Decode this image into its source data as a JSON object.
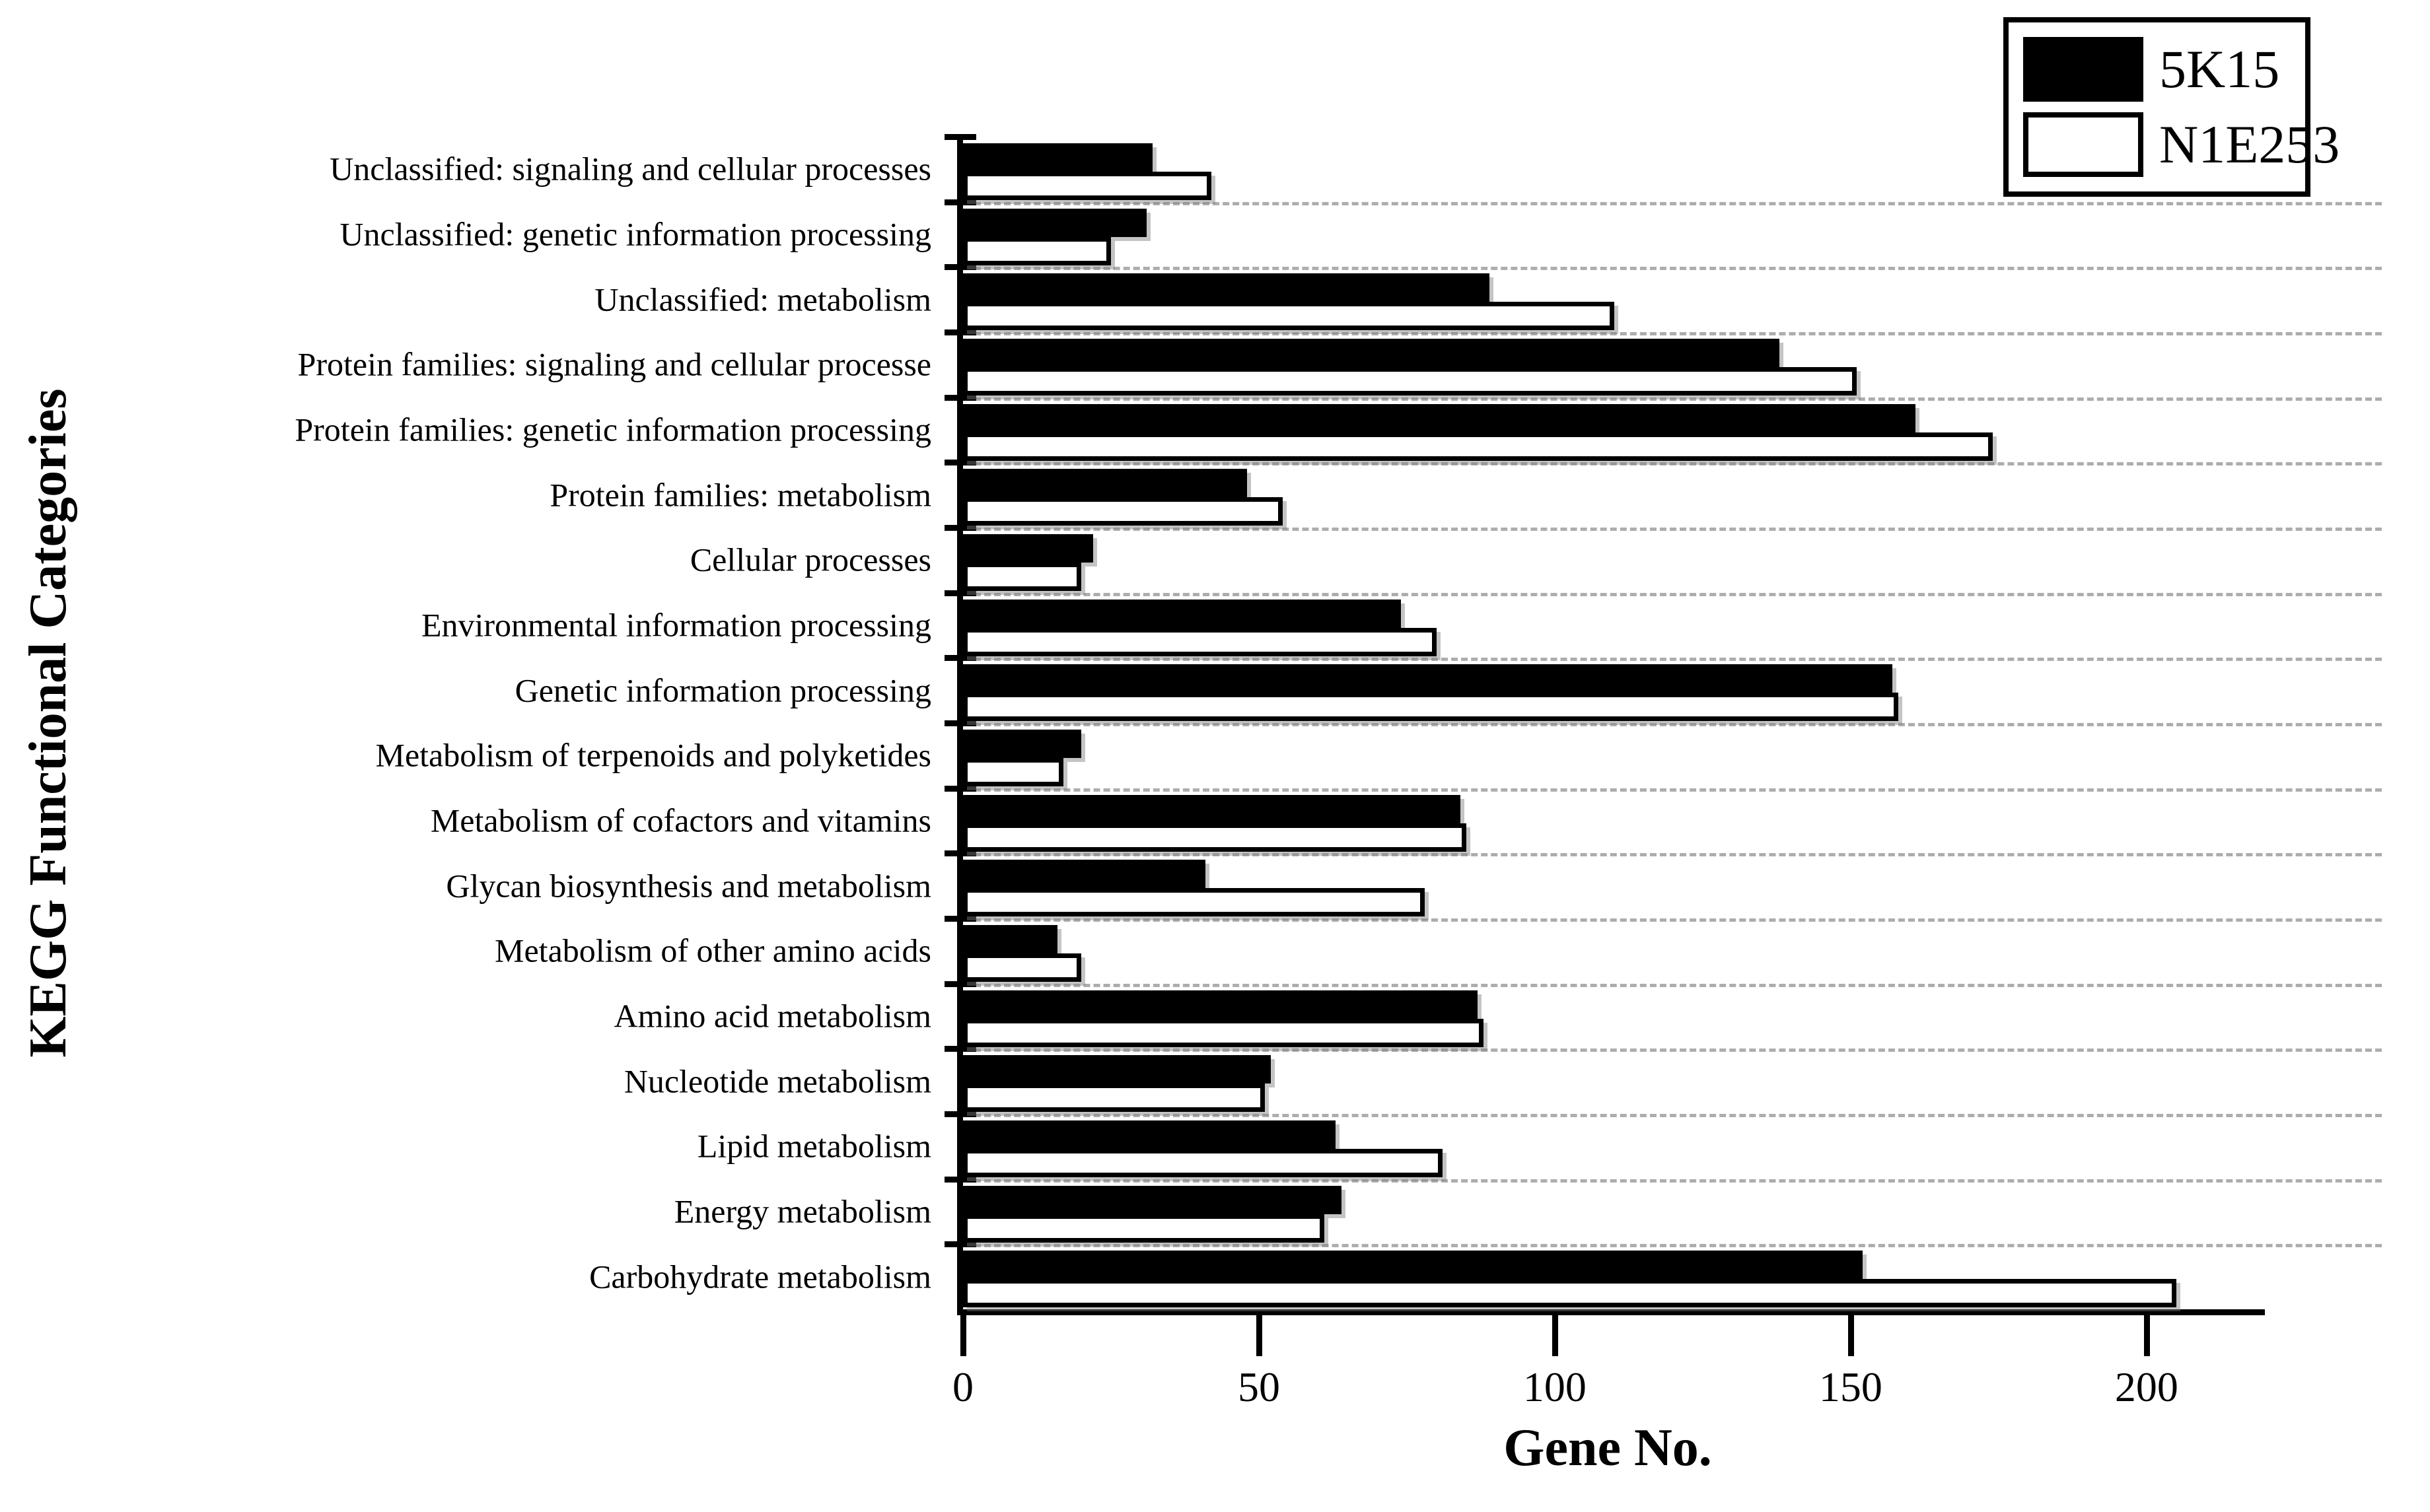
{
  "colors": {
    "bar_filled": "#000000",
    "bar_open_fill": "#ffffff",
    "bar_border": "#000000",
    "gridline": "#adadad",
    "axis": "#000000",
    "background": "#ffffff"
  },
  "chart_data": {
    "type": "bar",
    "orientation": "horizontal",
    "title": "",
    "xlabel": "Gene No.",
    "ylabel": "KEGG Functional Categories",
    "xlim": [
      0,
      220
    ],
    "x_ticks": [
      0,
      50,
      100,
      150,
      200
    ],
    "grid": "dashed gray horizontal separator lines between category groups",
    "legend_position": "top-right",
    "category_order": "top to bottom as displayed",
    "categories": [
      "Unclassified: signaling and cellular processes",
      "Unclassified: genetic information processing",
      "Unclassified: metabolism",
      "Protein families: signaling and cellular processe",
      "Protein families: genetic information processing",
      "Protein families: metabolism",
      "Cellular processes",
      "Environmental information processing",
      "Genetic information processing",
      "Metabolism of terpenoids and polyketides",
      "Metabolism of cofactors and vitamins",
      "Glycan biosynthesis and metabolism",
      "Metabolism of other amino acids",
      "Amino acid metabolism",
      "Nucleotide metabolism",
      "Lipid metabolism",
      "Energy metabolism",
      "Carbohydrate metabolism"
    ],
    "series": [
      {
        "name": "5K15",
        "fill": "#000000",
        "values": [
          32,
          31,
          89,
          138,
          161,
          48,
          22,
          74,
          157,
          20,
          84,
          41,
          16,
          87,
          52,
          63,
          64,
          152
        ]
      },
      {
        "name": "N1E253",
        "fill": "#ffffff",
        "values": [
          42,
          25,
          110,
          151,
          174,
          54,
          20,
          80,
          158,
          17,
          85,
          78,
          20,
          88,
          51,
          81,
          61,
          205
        ]
      }
    ]
  }
}
